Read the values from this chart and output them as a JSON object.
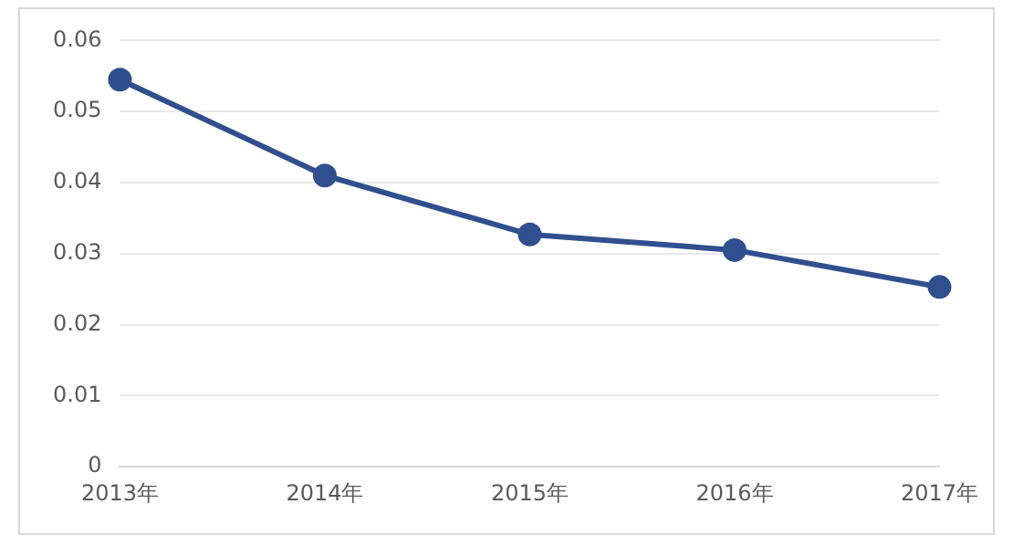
{
  "chart_data": {
    "type": "line",
    "categories": [
      "2013年",
      "2014年",
      "2015年",
      "2016年",
      "2017年"
    ],
    "series": [
      {
        "color": "#2f4f8f",
        "values": [
          0.0545,
          0.041,
          0.0327,
          0.0305,
          0.0253
        ]
      }
    ],
    "ylim": [
      0,
      0.06
    ],
    "yticks": [
      0,
      0.01,
      0.02,
      0.03,
      0.04,
      0.05,
      0.06
    ],
    "grid": "y",
    "legend": false,
    "marker": "circle",
    "line_style": "solid"
  }
}
